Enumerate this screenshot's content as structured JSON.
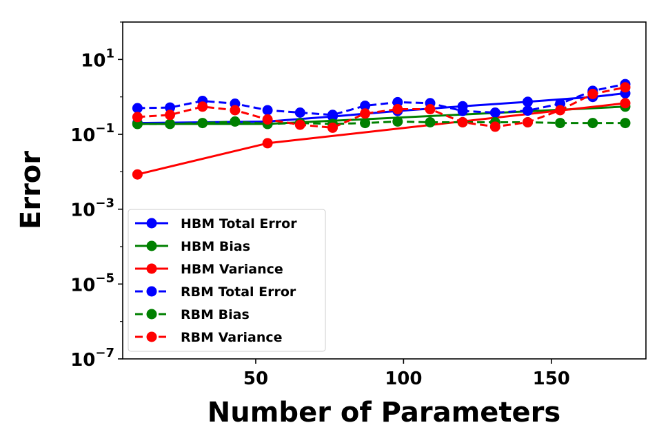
{
  "chart_data": {
    "type": "line",
    "title": "",
    "xlabel": "Number of Parameters",
    "ylabel": "Error",
    "yscale": "log",
    "xlim": [
      5,
      182
    ],
    "ylim": [
      1e-07,
      100
    ],
    "grid": false,
    "legend_position": "lower-left",
    "x_ticks": [
      {
        "value": 50,
        "label": "50"
      },
      {
        "value": 100,
        "label": "100"
      },
      {
        "value": 150,
        "label": "150"
      }
    ],
    "y_ticks": [
      {
        "value": 10,
        "base": "10",
        "exp": "1"
      },
      {
        "value": 0.1,
        "base": "10",
        "exp": "−1"
      },
      {
        "value": 0.001,
        "base": "10",
        "exp": "−3"
      },
      {
        "value": 1e-05,
        "base": "10",
        "exp": "−5"
      },
      {
        "value": 1e-07,
        "base": "10",
        "exp": "−7"
      }
    ],
    "series": [
      {
        "name": "HBM Total Error",
        "color": "#0000ff",
        "dash": "solid",
        "x": [
          10,
          54,
          76,
          98,
          120,
          142,
          164,
          175
        ],
        "y": [
          0.2,
          0.22,
          0.3,
          0.42,
          0.56,
          0.74,
          1.0,
          1.25
        ]
      },
      {
        "name": "HBM Bias",
        "color": "#008000",
        "dash": "solid",
        "x": [
          10,
          54,
          175
        ],
        "y": [
          0.19,
          0.19,
          0.55
        ]
      },
      {
        "name": "HBM Variance",
        "color": "#ff0000",
        "dash": "solid",
        "x": [
          10,
          54,
          175
        ],
        "y": [
          0.0085,
          0.058,
          0.68
        ]
      },
      {
        "name": "RBM Total Error",
        "color": "#0000ff",
        "dash": "dashed",
        "x": [
          10,
          21,
          32,
          43,
          54,
          65,
          76,
          87,
          98,
          109,
          120,
          131,
          142,
          153,
          164,
          175
        ],
        "y": [
          0.5,
          0.52,
          0.78,
          0.66,
          0.44,
          0.38,
          0.33,
          0.58,
          0.72,
          0.68,
          0.42,
          0.38,
          0.43,
          0.66,
          1.45,
          2.2
        ]
      },
      {
        "name": "RBM Bias",
        "color": "#008000",
        "dash": "dashed",
        "x": [
          10,
          21,
          32,
          43,
          54,
          65,
          76,
          87,
          98,
          109,
          120,
          131,
          142,
          153,
          164,
          175
        ],
        "y": [
          0.19,
          0.19,
          0.2,
          0.22,
          0.19,
          0.2,
          0.19,
          0.2,
          0.22,
          0.21,
          0.21,
          0.21,
          0.21,
          0.2,
          0.2,
          0.2
        ]
      },
      {
        "name": "RBM Variance",
        "color": "#ff0000",
        "dash": "dashed",
        "x": [
          10,
          21,
          32,
          43,
          54,
          65,
          76,
          87,
          98,
          109,
          120,
          131,
          142,
          153,
          164,
          175
        ],
        "y": [
          0.29,
          0.33,
          0.55,
          0.44,
          0.25,
          0.18,
          0.15,
          0.36,
          0.47,
          0.47,
          0.21,
          0.16,
          0.21,
          0.44,
          1.2,
          1.8
        ]
      }
    ]
  }
}
